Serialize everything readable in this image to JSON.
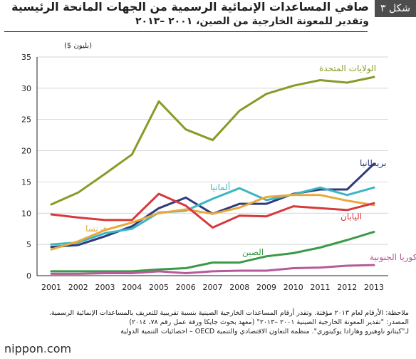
{
  "header": {
    "figure_label": "شكل ٣",
    "title_line1": "صافي المساعدات الإنمائية الرسمية من الجهات المانحة الرئيسية",
    "title_line2": "وتقدير للمعونة الخارجية من الصين، ٢٠٠١ –٢٠١٣"
  },
  "chart_data": {
    "type": "line",
    "unit_label": "(بليون $)",
    "x": [
      "2001",
      "2002",
      "2003",
      "2004",
      "2005",
      "2006",
      "2007",
      "2008",
      "2009",
      "2010",
      "2011",
      "2012",
      "2013"
    ],
    "ylim": [
      0,
      35
    ],
    "yticks": [
      0,
      5,
      10,
      15,
      20,
      25,
      30,
      35
    ],
    "grid": true,
    "series": [
      {
        "name": "الولايات المتحدة",
        "color": "#8a9a27",
        "values": [
          11.4,
          13.3,
          16.3,
          19.4,
          27.9,
          23.4,
          21.7,
          26.4,
          29.1,
          30.4,
          31.3,
          30.9,
          31.8
        ]
      },
      {
        "name": "بريطانيا",
        "color": "#2e3a7d",
        "values": [
          4.6,
          4.9,
          6.3,
          7.9,
          10.8,
          12.5,
          9.9,
          11.5,
          11.5,
          13.1,
          13.8,
          13.8,
          17.9
        ]
      },
      {
        "name": "ألمانيا",
        "color": "#3cb6c2",
        "values": [
          5.0,
          5.3,
          6.8,
          7.5,
          10.1,
          10.4,
          12.3,
          14.0,
          12.1,
          13.0,
          14.1,
          12.9,
          14.1
        ]
      },
      {
        "name": "فرنسا",
        "color": "#e8a93a",
        "values": [
          4.2,
          5.5,
          7.3,
          8.5,
          10.0,
          10.6,
          9.9,
          10.9,
          12.6,
          12.9,
          12.9,
          12.0,
          11.3
        ]
      },
      {
        "name": "اليابان",
        "color": "#d6393d",
        "values": [
          9.8,
          9.3,
          8.9,
          8.9,
          13.1,
          11.2,
          7.7,
          9.6,
          9.5,
          11.1,
          10.8,
          10.5,
          11.6
        ]
      },
      {
        "name": "الصين",
        "color": "#3a9a48",
        "values": [
          0.7,
          0.7,
          0.7,
          0.7,
          1.0,
          1.2,
          2.1,
          2.1,
          3.1,
          3.6,
          4.5,
          5.7,
          7.0
        ]
      },
      {
        "name": "كوريا الجنوبية",
        "color": "#b65a9a",
        "values": [
          0.3,
          0.3,
          0.4,
          0.4,
          0.7,
          0.4,
          0.7,
          0.8,
          0.8,
          1.2,
          1.3,
          1.6,
          1.7
        ]
      }
    ]
  },
  "notes": {
    "line1": "ملاحظة: الأرقام لعام ٢٠١٣ مؤقتة. وتقدر أرقام المساعدات الخارجية الصينية بنسبة تقريبية للتعريف بالمساعدات الإنمائية الرسمية.",
    "line2": "المصدر: \"تقدير المعونة الخارجية الصينية ٢٠٠١ –٢٠١٣\" (معهد بحوث جايكا ورقة عمل رقم ٧٨، ٢٠١٤)",
    "line3": "لـ\"كيتانو ناوهيرو وهارادا يوكيتوري\". منظمة التعاون الاقتصادي والتنمية OECD – احصائيات التنمية الدولية"
  },
  "brand": {
    "name": "nippon",
    "dot": ".",
    "tld": "com"
  }
}
